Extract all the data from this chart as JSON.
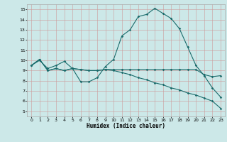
{
  "xlabel": "Humidex (Indice chaleur)",
  "bg_color": "#cce8e8",
  "grid_color": "#aacccc",
  "line_color": "#1a6b6b",
  "xlim": [
    -0.5,
    23.5
  ],
  "ylim": [
    4.5,
    15.5
  ],
  "xticks": [
    0,
    1,
    2,
    3,
    4,
    5,
    6,
    7,
    8,
    9,
    10,
    11,
    12,
    13,
    14,
    15,
    16,
    17,
    18,
    19,
    20,
    21,
    22,
    23
  ],
  "yticks": [
    5,
    6,
    7,
    8,
    9,
    10,
    11,
    12,
    13,
    14,
    15
  ],
  "curve1_x": [
    0,
    1,
    2,
    3,
    4,
    5,
    6,
    7,
    8,
    9,
    10,
    11,
    12,
    13,
    14,
    15,
    16,
    17,
    18,
    19,
    20,
    21,
    22,
    23
  ],
  "curve1_y": [
    9.5,
    10.0,
    9.2,
    9.5,
    9.9,
    9.2,
    7.9,
    7.9,
    8.3,
    9.4,
    10.1,
    12.4,
    13.0,
    14.3,
    14.5,
    15.1,
    14.6,
    14.1,
    13.1,
    11.3,
    9.5,
    8.5,
    7.3,
    6.4
  ],
  "curve2_x": [
    0,
    1,
    2,
    3,
    4,
    5,
    6,
    7,
    8,
    9,
    10,
    11,
    12,
    13,
    14,
    15,
    16,
    17,
    18,
    19,
    20,
    21,
    22,
    23
  ],
  "curve2_y": [
    9.5,
    10.1,
    9.0,
    9.2,
    9.0,
    9.2,
    9.1,
    9.0,
    9.0,
    9.1,
    9.1,
    9.1,
    9.1,
    9.1,
    9.1,
    9.1,
    9.1,
    9.1,
    9.1,
    9.1,
    9.1,
    8.6,
    8.4,
    8.5
  ],
  "curve3_x": [
    0,
    1,
    2,
    3,
    4,
    5,
    6,
    7,
    8,
    9,
    10,
    11,
    12,
    13,
    14,
    15,
    16,
    17,
    18,
    19,
    20,
    21,
    22,
    23
  ],
  "curve3_y": [
    9.5,
    10.1,
    9.0,
    9.2,
    9.0,
    9.2,
    9.1,
    9.0,
    9.0,
    9.1,
    9.0,
    8.8,
    8.6,
    8.3,
    8.1,
    7.8,
    7.6,
    7.3,
    7.1,
    6.8,
    6.6,
    6.3,
    6.0,
    5.3
  ]
}
